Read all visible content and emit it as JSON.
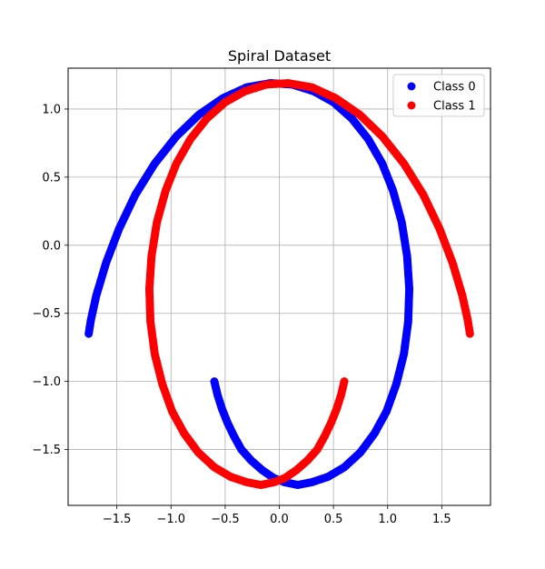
{
  "chart_data": {
    "type": "scatter",
    "title": "Spiral Dataset",
    "xlabel": "",
    "ylabel": "",
    "xlim": [
      -1.95,
      1.95
    ],
    "ylim": [
      -1.91,
      1.3
    ],
    "xticks": [
      -1.5,
      -1.0,
      -0.5,
      0.0,
      0.5,
      1.0,
      1.5
    ],
    "xtick_labels": [
      "−1.5",
      "−1.0",
      "−0.5",
      "0.0",
      "0.5",
      "1.0",
      "1.5"
    ],
    "yticks": [
      -1.5,
      -1.0,
      -0.5,
      0.0,
      0.5,
      1.0
    ],
    "ytick_labels": [
      "−1.5",
      "−1.0",
      "−0.5",
      "0.0",
      "0.5",
      "1.0"
    ],
    "grid": true,
    "legend_position": "top-right",
    "series": [
      {
        "name": "Class 0",
        "color": "#0000ff",
        "points": [
          [
            -0.6,
            -1.0
          ],
          [
            -0.57,
            -1.1
          ],
          [
            -0.53,
            -1.2
          ],
          [
            -0.48,
            -1.3
          ],
          [
            -0.42,
            -1.4
          ],
          [
            -0.35,
            -1.5
          ],
          [
            -0.26,
            -1.58
          ],
          [
            -0.16,
            -1.65
          ],
          [
            -0.05,
            -1.71
          ],
          [
            0.05,
            -1.74
          ],
          [
            0.17,
            -1.76
          ],
          [
            0.3,
            -1.74
          ],
          [
            0.45,
            -1.7
          ],
          [
            0.6,
            -1.63
          ],
          [
            0.75,
            -1.52
          ],
          [
            0.88,
            -1.38
          ],
          [
            0.99,
            -1.22
          ],
          [
            1.08,
            -1.02
          ],
          [
            1.15,
            -0.8
          ],
          [
            1.19,
            -0.56
          ],
          [
            1.2,
            -0.32
          ],
          [
            1.18,
            -0.08
          ],
          [
            1.13,
            0.17
          ],
          [
            1.05,
            0.4
          ],
          [
            0.95,
            0.6
          ],
          [
            0.82,
            0.78
          ],
          [
            0.67,
            0.93
          ],
          [
            0.5,
            1.05
          ],
          [
            0.32,
            1.13
          ],
          [
            0.12,
            1.18
          ],
          [
            -0.08,
            1.19
          ],
          [
            -0.3,
            1.16
          ],
          [
            -0.52,
            1.08
          ],
          [
            -0.74,
            0.96
          ],
          [
            -0.95,
            0.8
          ],
          [
            -1.15,
            0.6
          ],
          [
            -1.33,
            0.37
          ],
          [
            -1.48,
            0.12
          ],
          [
            -1.6,
            -0.13
          ],
          [
            -1.69,
            -0.37
          ],
          [
            -1.74,
            -0.55
          ],
          [
            -1.76,
            -0.65
          ]
        ]
      },
      {
        "name": "Class 1",
        "color": "#ff0000",
        "points": [
          [
            0.6,
            -1.0
          ],
          [
            0.57,
            -1.1
          ],
          [
            0.53,
            -1.2
          ],
          [
            0.48,
            -1.3
          ],
          [
            0.42,
            -1.4
          ],
          [
            0.35,
            -1.5
          ],
          [
            0.26,
            -1.58
          ],
          [
            0.16,
            -1.65
          ],
          [
            0.05,
            -1.71
          ],
          [
            -0.05,
            -1.74
          ],
          [
            -0.17,
            -1.76
          ],
          [
            -0.3,
            -1.74
          ],
          [
            -0.45,
            -1.7
          ],
          [
            -0.6,
            -1.63
          ],
          [
            -0.75,
            -1.52
          ],
          [
            -0.88,
            -1.38
          ],
          [
            -0.99,
            -1.22
          ],
          [
            -1.08,
            -1.02
          ],
          [
            -1.15,
            -0.8
          ],
          [
            -1.19,
            -0.56
          ],
          [
            -1.2,
            -0.32
          ],
          [
            -1.18,
            -0.08
          ],
          [
            -1.13,
            0.17
          ],
          [
            -1.05,
            0.4
          ],
          [
            -0.95,
            0.6
          ],
          [
            -0.82,
            0.78
          ],
          [
            -0.67,
            0.93
          ],
          [
            -0.5,
            1.05
          ],
          [
            -0.32,
            1.13
          ],
          [
            -0.12,
            1.18
          ],
          [
            0.08,
            1.19
          ],
          [
            0.3,
            1.16
          ],
          [
            0.52,
            1.08
          ],
          [
            0.74,
            0.96
          ],
          [
            0.95,
            0.8
          ],
          [
            1.15,
            0.6
          ],
          [
            1.33,
            0.37
          ],
          [
            1.48,
            0.12
          ],
          [
            1.6,
            -0.13
          ],
          [
            1.69,
            -0.37
          ],
          [
            1.74,
            -0.55
          ],
          [
            1.76,
            -0.65
          ]
        ]
      }
    ]
  }
}
